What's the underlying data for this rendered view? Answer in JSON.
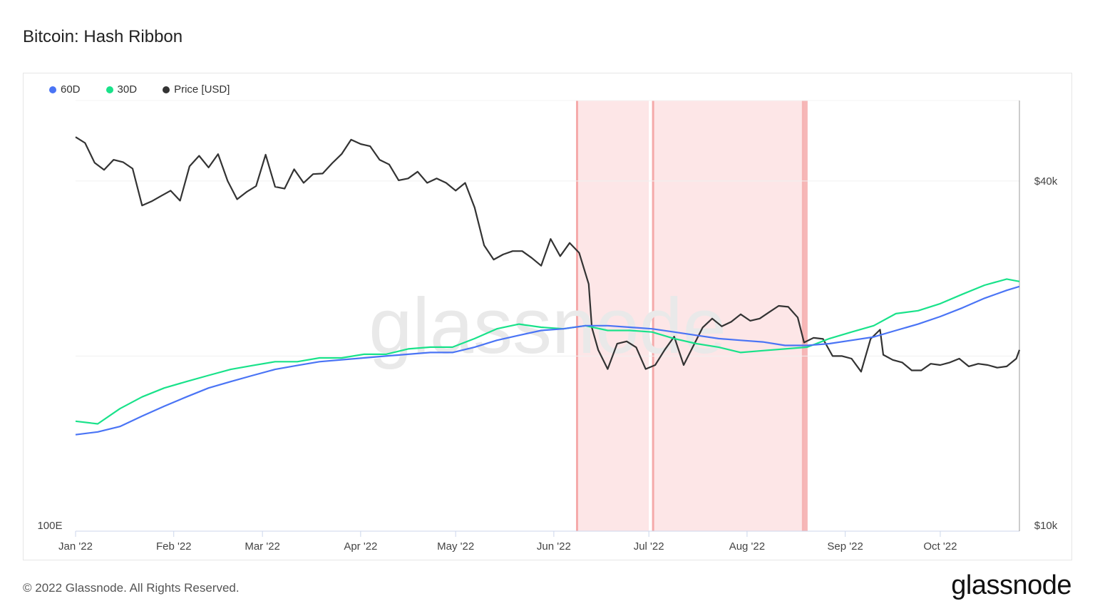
{
  "title": "Bitcoin: Hash Ribbon",
  "legend": [
    {
      "label": "60D",
      "color": "#4a74f5"
    },
    {
      "label": "30D",
      "color": "#19e28a"
    },
    {
      "label": "Price [USD]",
      "color": "#333333"
    }
  ],
  "watermark": "glassnode",
  "footer": "© 2022 Glassnode. All Rights Reserved.",
  "brand": "glassnode",
  "chart_data": {
    "type": "line",
    "title": "Bitcoin: Hash Ribbon",
    "x_ticks": [
      "Jan '22",
      "Feb '22",
      "Mar '22",
      "Apr '22",
      "May '22",
      "Jun '22",
      "Jul '22",
      "Aug '22",
      "Sep '22",
      "Oct '22"
    ],
    "y_left_label": "100E",
    "y_right_ticks": [
      "$40k",
      "$10k"
    ],
    "right_axis_scale": "log",
    "right_axis_range": [
      10000,
      55000
    ],
    "left_axis_scale": "log",
    "capitulation_bands": [
      {
        "start": "2022-06-08",
        "end": "2022-07-01"
      },
      {
        "start": "2022-07-02",
        "end": "2022-08-19"
      }
    ],
    "capitulation_color": "#fde6e7",
    "capitulation_edge_color": "#f5aaaa",
    "series": [
      {
        "name": "Price [USD]",
        "color": "#333333",
        "axis": "right",
        "x": [
          "2022-01-01",
          "2022-01-04",
          "2022-01-07",
          "2022-01-10",
          "2022-01-13",
          "2022-01-16",
          "2022-01-19",
          "2022-01-22",
          "2022-01-25",
          "2022-01-28",
          "2022-01-31",
          "2022-02-03",
          "2022-02-06",
          "2022-02-09",
          "2022-02-12",
          "2022-02-15",
          "2022-02-18",
          "2022-02-21",
          "2022-02-24",
          "2022-02-27",
          "2022-03-02",
          "2022-03-05",
          "2022-03-08",
          "2022-03-11",
          "2022-03-14",
          "2022-03-17",
          "2022-03-20",
          "2022-03-23",
          "2022-03-26",
          "2022-03-29",
          "2022-04-01",
          "2022-04-04",
          "2022-04-07",
          "2022-04-10",
          "2022-04-13",
          "2022-04-16",
          "2022-04-19",
          "2022-04-22",
          "2022-04-25",
          "2022-04-28",
          "2022-05-01",
          "2022-05-04",
          "2022-05-07",
          "2022-05-10",
          "2022-05-13",
          "2022-05-16",
          "2022-05-19",
          "2022-05-22",
          "2022-05-25",
          "2022-05-28",
          "2022-05-31",
          "2022-06-03",
          "2022-06-06",
          "2022-06-09",
          "2022-06-12",
          "2022-06-13",
          "2022-06-15",
          "2022-06-18",
          "2022-06-21",
          "2022-06-24",
          "2022-06-27",
          "2022-06-30",
          "2022-07-03",
          "2022-07-06",
          "2022-07-09",
          "2022-07-12",
          "2022-07-15",
          "2022-07-18",
          "2022-07-21",
          "2022-07-24",
          "2022-07-27",
          "2022-07-30",
          "2022-08-02",
          "2022-08-05",
          "2022-08-08",
          "2022-08-11",
          "2022-08-14",
          "2022-08-17",
          "2022-08-19",
          "2022-08-22",
          "2022-08-25",
          "2022-08-28",
          "2022-08-31",
          "2022-09-03",
          "2022-09-06",
          "2022-09-09",
          "2022-09-12",
          "2022-09-13",
          "2022-09-16",
          "2022-09-19",
          "2022-09-22",
          "2022-09-25",
          "2022-09-28",
          "2022-10-01",
          "2022-10-04",
          "2022-10-07",
          "2022-10-10",
          "2022-10-13",
          "2022-10-16",
          "2022-10-19",
          "2022-10-22",
          "2022-10-25",
          "2022-10-26"
        ],
        "values": [
          47600,
          46500,
          43000,
          41800,
          43500,
          43100,
          42000,
          36300,
          36900,
          37700,
          38500,
          37000,
          42400,
          44200,
          42200,
          44500,
          40000,
          37200,
          38300,
          39200,
          44400,
          39100,
          38800,
          41900,
          39700,
          41100,
          41200,
          42900,
          44500,
          47100,
          46300,
          45900,
          43500,
          42700,
          40100,
          40400,
          41500,
          39700,
          40400,
          39700,
          38500,
          39700,
          36000,
          31000,
          29300,
          29900,
          30300,
          30300,
          29500,
          28600,
          31800,
          29700,
          31300,
          30100,
          26600,
          22400,
          20500,
          19000,
          21000,
          21200,
          20700,
          19000,
          19300,
          20500,
          21600,
          19300,
          20800,
          22400,
          23200,
          22500,
          22900,
          23600,
          23000,
          23200,
          23800,
          24400,
          24300,
          23300,
          21100,
          21500,
          21400,
          20000,
          20000,
          19800,
          18800,
          21400,
          22200,
          20100,
          19700,
          19500,
          18900,
          18900,
          19400,
          19300,
          19500,
          19800,
          19200,
          19400,
          19300,
          19100,
          19200,
          19800,
          20500
        ]
      },
      {
        "name": "30D",
        "color": "#19e28a",
        "axis": "left",
        "x": [
          "2022-01-01",
          "2022-01-08",
          "2022-01-15",
          "2022-01-22",
          "2022-01-29",
          "2022-02-05",
          "2022-02-12",
          "2022-02-19",
          "2022-02-26",
          "2022-03-05",
          "2022-03-12",
          "2022-03-19",
          "2022-03-26",
          "2022-04-02",
          "2022-04-09",
          "2022-04-16",
          "2022-04-23",
          "2022-04-30",
          "2022-05-07",
          "2022-05-14",
          "2022-05-21",
          "2022-05-28",
          "2022-06-04",
          "2022-06-11",
          "2022-06-18",
          "2022-06-25",
          "2022-07-02",
          "2022-07-09",
          "2022-07-16",
          "2022-07-23",
          "2022-07-30",
          "2022-08-06",
          "2022-08-13",
          "2022-08-20",
          "2022-08-27",
          "2022-09-03",
          "2022-09-10",
          "2022-09-17",
          "2022-09-24",
          "2022-10-01",
          "2022-10-08",
          "2022-10-15",
          "2022-10-22",
          "2022-10-26"
        ],
        "values": [
          3.6,
          3.55,
          3.85,
          4.1,
          4.3,
          4.45,
          4.6,
          4.75,
          4.85,
          4.95,
          4.95,
          5.05,
          5.05,
          5.15,
          5.15,
          5.3,
          5.35,
          5.35,
          5.6,
          5.9,
          6.05,
          5.95,
          5.9,
          6.0,
          5.85,
          5.85,
          5.8,
          5.6,
          5.45,
          5.35,
          5.2,
          5.25,
          5.3,
          5.35,
          5.6,
          5.8,
          6.0,
          6.4,
          6.5,
          6.75,
          7.1,
          7.45,
          7.7,
          7.6
        ]
      },
      {
        "name": "60D",
        "color": "#4a74f5",
        "axis": "left",
        "x": [
          "2022-01-01",
          "2022-01-08",
          "2022-01-15",
          "2022-01-22",
          "2022-01-29",
          "2022-02-05",
          "2022-02-12",
          "2022-02-19",
          "2022-02-26",
          "2022-03-05",
          "2022-03-12",
          "2022-03-19",
          "2022-03-26",
          "2022-04-02",
          "2022-04-09",
          "2022-04-16",
          "2022-04-23",
          "2022-04-30",
          "2022-05-07",
          "2022-05-14",
          "2022-05-21",
          "2022-05-28",
          "2022-06-04",
          "2022-06-11",
          "2022-06-18",
          "2022-06-25",
          "2022-07-02",
          "2022-07-09",
          "2022-07-16",
          "2022-07-23",
          "2022-07-30",
          "2022-08-06",
          "2022-08-13",
          "2022-08-20",
          "2022-08-27",
          "2022-09-03",
          "2022-09-10",
          "2022-09-17",
          "2022-09-24",
          "2022-10-01",
          "2022-10-08",
          "2022-10-15",
          "2022-10-22",
          "2022-10-26"
        ],
        "values": [
          3.35,
          3.4,
          3.5,
          3.7,
          3.9,
          4.1,
          4.3,
          4.45,
          4.6,
          4.75,
          4.85,
          4.95,
          5.0,
          5.05,
          5.1,
          5.15,
          5.2,
          5.2,
          5.35,
          5.55,
          5.7,
          5.85,
          5.9,
          6.0,
          6.0,
          5.95,
          5.9,
          5.8,
          5.7,
          5.6,
          5.55,
          5.5,
          5.4,
          5.4,
          5.45,
          5.55,
          5.65,
          5.85,
          6.05,
          6.3,
          6.6,
          6.95,
          7.25,
          7.4
        ]
      }
    ],
    "left_axis_range": [
      2.0,
      20.0
    ],
    "legend_position": "top-left",
    "grid": true
  }
}
